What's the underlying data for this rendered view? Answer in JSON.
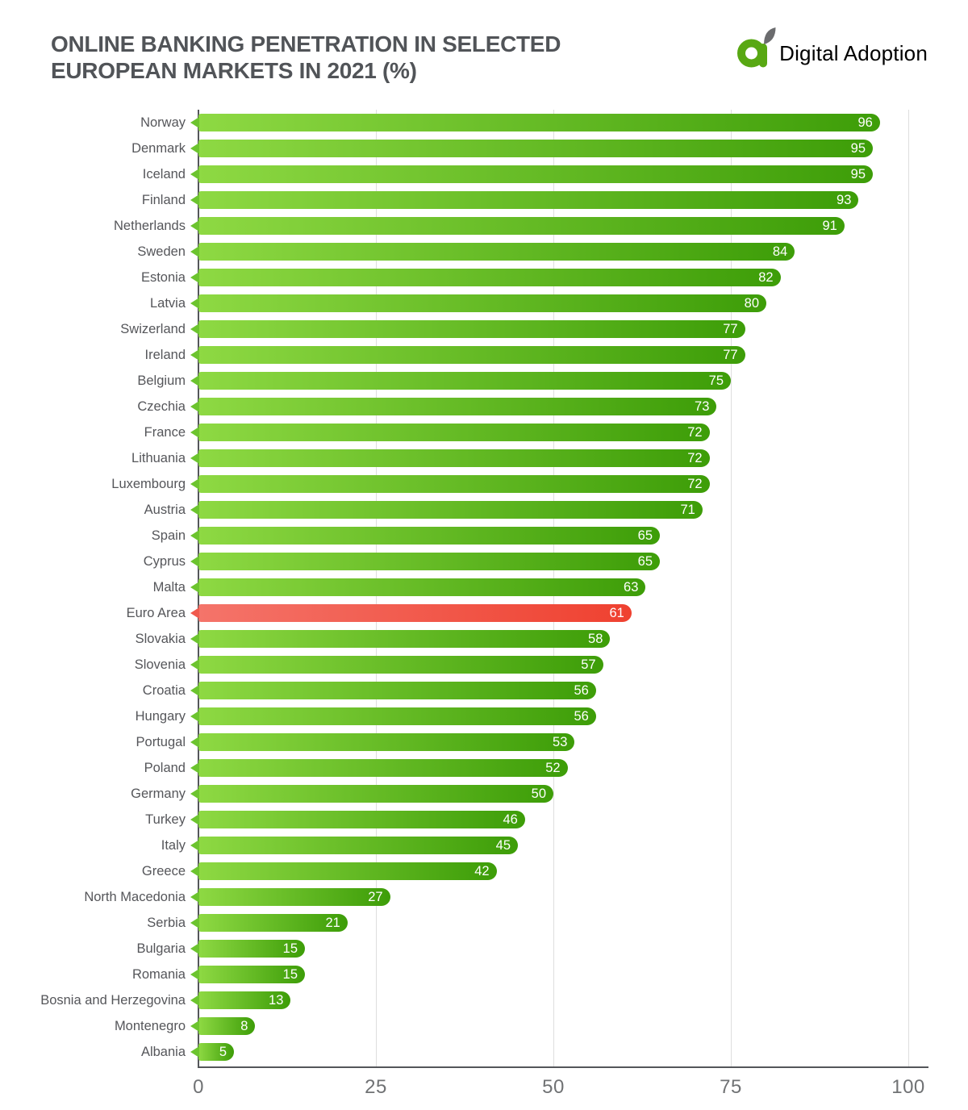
{
  "header": {
    "title_line1": "ONLINE BANKING PENETRATION IN SELECTED",
    "title_line2": "EUROPEAN MARKETS IN 2021 (%)",
    "logo_text": "Digital Adoption"
  },
  "colors": {
    "bar_gradient_start": "#8ed943",
    "bar_gradient_end": "#3d9d08",
    "bar_tail": "#6cc42e",
    "highlight_gradient_start": "#f4746a",
    "highlight_gradient_end": "#ef4130",
    "highlight_tail": "#f05a4d",
    "grid_color": "#dedede",
    "axis_color": "#54565a",
    "tick_text": "#707274",
    "label_text": "#55565a",
    "title_text": "#515458",
    "value_text": "#ffffff",
    "logo_green": "#58a813",
    "logo_gray": "#6b6c6e"
  },
  "chart_data": {
    "type": "bar",
    "orientation": "horizontal",
    "title": "ONLINE BANKING PENETRATION IN SELECTED EUROPEAN MARKETS IN 2021 (%)",
    "xlabel": "",
    "ylabel": "",
    "xlim": [
      0,
      100
    ],
    "x_ticks": [
      0,
      25,
      50,
      75,
      100
    ],
    "grid": true,
    "legend": false,
    "value_labels": "inside-end, white",
    "categories": [
      "Norway",
      "Denmark",
      "Iceland",
      "Finland",
      "Netherlands",
      "Sweden",
      "Estonia",
      "Latvia",
      "Swizerland",
      "Ireland",
      "Belgium",
      "Czechia",
      "France",
      "Lithuania",
      "Luxembourg",
      "Austria",
      "Spain",
      "Cyprus",
      "Malta",
      "Euro Area",
      "Slovakia",
      "Slovenia",
      "Croatia",
      "Hungary",
      "Portugal",
      "Poland",
      "Germany",
      "Turkey",
      "Italy",
      "Greece",
      "North Macedonia",
      "Serbia",
      "Bulgaria",
      "Romania",
      "Bosnia and Herzegovina",
      "Montenegro",
      "Albania"
    ],
    "values": [
      96,
      95,
      95,
      93,
      91,
      84,
      82,
      80,
      77,
      77,
      75,
      73,
      72,
      72,
      72,
      71,
      65,
      65,
      63,
      61,
      58,
      57,
      56,
      56,
      53,
      52,
      50,
      46,
      45,
      42,
      27,
      21,
      15,
      15,
      13,
      8,
      5
    ],
    "highlight_category": "Euro Area",
    "highlight_color": "#ef4130",
    "bar_color": "green gradient #8ed943 to #3d9d08"
  }
}
